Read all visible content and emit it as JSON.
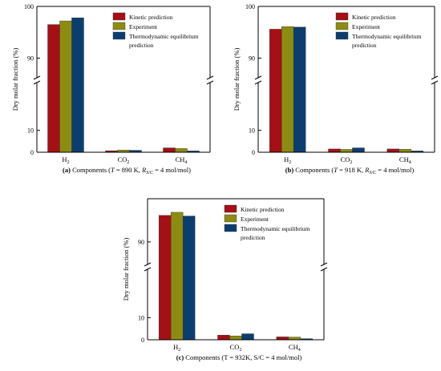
{
  "legend_items": [
    {
      "label": "Kinetic prediction",
      "color": "#a50f15"
    },
    {
      "label": "Experiment",
      "color": "#8c8c10"
    },
    {
      "label": "Thermodynamic equilibrium",
      "label2": "prediction",
      "color": "#0b3e70"
    }
  ],
  "chart_data": [
    {
      "type": "bar",
      "ylabel": "Dry molar fraction (%)",
      "caption": {
        "tag": "(a)",
        "pre": " Components (",
        "T": "T",
        "mid": " = 890 K, ",
        "R": "R",
        "sub": "S/C",
        "post": " = 4 mol/mol)"
      },
      "categories": [
        {
          "base": "H",
          "sub": "2"
        },
        {
          "base": "CO",
          "sub": "2"
        },
        {
          "base": "CH",
          "sub": "4"
        }
      ],
      "yaxis_break": true,
      "lower_ticks": [
        "0",
        "10"
      ],
      "upper_ticks": [
        "90",
        "100"
      ],
      "series": [
        {
          "name": "Kinetic prediction",
          "values": [
            96.5,
            0.7,
            2.0
          ]
        },
        {
          "name": "Experiment",
          "values": [
            97.2,
            1.0,
            1.7
          ]
        },
        {
          "name": "Thermodynamic equilibrium prediction",
          "values": [
            97.8,
            0.9,
            0.6
          ]
        }
      ]
    },
    {
      "type": "bar",
      "ylabel": "Dry molar fraction (%)",
      "caption": {
        "tag": "(b)",
        "pre": " Components (",
        "T": "T",
        "mid": " = 918 K, ",
        "R": "R",
        "sub": "S/C",
        "post": " = 4 mol/mol)"
      },
      "categories": [
        {
          "base": "H",
          "sub": "2"
        },
        {
          "base": "CO",
          "sub": "2"
        },
        {
          "base": "CH",
          "sub": "4"
        }
      ],
      "yaxis_break": true,
      "lower_ticks": [
        "0",
        "10"
      ],
      "upper_ticks": [
        "90",
        "100"
      ],
      "series": [
        {
          "name": "Kinetic prediction",
          "values": [
            95.6,
            1.5,
            1.5
          ]
        },
        {
          "name": "Experiment",
          "values": [
            96.1,
            1.3,
            1.4
          ]
        },
        {
          "name": "Thermodynamic equilibrium prediction",
          "values": [
            96.0,
            2.0,
            0.6
          ]
        }
      ]
    },
    {
      "type": "bar",
      "ylabel": "Dry molar fraction (%)",
      "caption": {
        "tag": "(c)",
        "text": " Components (T = 932K, S/C = 4 mol/mol)"
      },
      "categories": [
        {
          "base": "H",
          "sub": "2"
        },
        {
          "base": "CO",
          "sub": "2"
        },
        {
          "base": "CH",
          "sub": "4"
        }
      ],
      "yaxis_break": true,
      "lower_ticks": [
        "0",
        "10"
      ],
      "upper_ticks": [
        "90"
      ],
      "series": [
        {
          "name": "Kinetic prediction",
          "values": [
            94.3,
            2.1,
            1.3
          ]
        },
        {
          "name": "Experiment",
          "values": [
            94.8,
            1.7,
            1.2
          ]
        },
        {
          "name": "Thermodynamic equilibrium prediction",
          "values": [
            94.2,
            2.7,
            0.5
          ]
        }
      ]
    }
  ]
}
